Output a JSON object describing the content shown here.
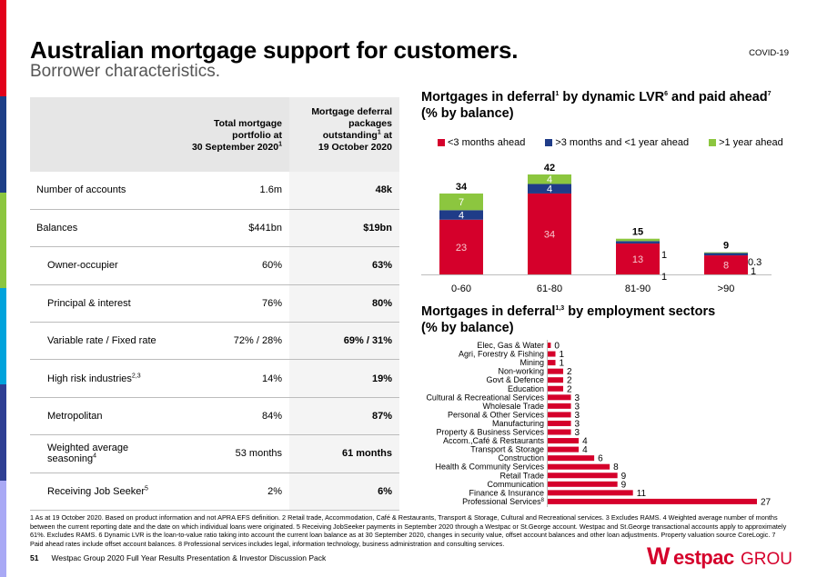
{
  "page": {
    "title": "Australian mortgage support for customers.",
    "subtitle": "Borrower characteristics.",
    "tag": "COVID-19"
  },
  "table": {
    "header": {
      "col1": [
        "Total mortgage",
        "portfolio at",
        "30 September 2020"
      ],
      "col1_sup": "1",
      "col2": [
        "Mortgage deferral",
        "packages",
        "outstanding",
        "19 October 2020"
      ],
      "col2_sup": "1",
      "col2_at": " at"
    },
    "rows": [
      {
        "label": "Number of accounts",
        "sup": "",
        "indent": false,
        "v1": "1.6m",
        "v2": "48k"
      },
      {
        "label": "Balances",
        "sup": "",
        "indent": false,
        "v1": "$441bn",
        "v2": "$19bn"
      },
      {
        "label": "Owner-occupier",
        "sup": "",
        "indent": true,
        "v1": "60%",
        "v2": "63%"
      },
      {
        "label": "Principal & interest",
        "sup": "",
        "indent": true,
        "v1": "76%",
        "v2": "80%"
      },
      {
        "label": "Variable rate / Fixed rate",
        "sup": "",
        "indent": true,
        "v1": "72% / 28%",
        "v2": "69% / 31%"
      },
      {
        "label": "High risk industries",
        "sup": "2,3",
        "indent": true,
        "v1": "14%",
        "v2": "19%"
      },
      {
        "label": "Metropolitan",
        "sup": "",
        "indent": true,
        "v1": "84%",
        "v2": "87%"
      },
      {
        "label": "Weighted average seasoning",
        "sup": "4",
        "indent": true,
        "v1": "53 months",
        "v2": "61 months"
      },
      {
        "label": "Receiving Job Seeker",
        "sup": "5",
        "indent": true,
        "v1": "2%",
        "v2": "6%"
      }
    ]
  },
  "chart1_title": {
    "a": "Mortgages in deferral",
    "sup_a": "1",
    "b": " by dynamic LVR",
    "sup_b": "6",
    "c": " and paid ahead",
    "sup_c": "7",
    "line2": "(% by balance)"
  },
  "chart2_title": {
    "a": "Mortgages in deferral",
    "sup_a": "1,3",
    "b": " by employment sectors",
    "line2": "(% by balance)"
  },
  "chart_data": [
    {
      "type": "bar",
      "stacked": true,
      "categories": [
        "0-60",
        "61-80",
        "81-90",
        ">90"
      ],
      "series": [
        {
          "name": "<3 months ahead",
          "color": "#d5002b",
          "values": [
            23,
            34,
            13,
            8
          ],
          "labels": [
            "23",
            "34",
            "13",
            "8"
          ]
        },
        {
          "name": ">3 months and <1 year ahead",
          "color": "#1f3c88",
          "values": [
            4,
            4,
            1,
            1
          ],
          "labels": [
            "4",
            "4",
            "1",
            "1"
          ]
        },
        {
          "name": ">1 year ahead",
          "color": "#8cc63f",
          "values": [
            7,
            4,
            1,
            0.3
          ],
          "labels": [
            "7",
            "4",
            "1",
            "0.3"
          ]
        }
      ],
      "totals": [
        "34",
        "42",
        "15",
        "9"
      ],
      "ylim": [
        0,
        42
      ]
    },
    {
      "type": "bar",
      "orientation": "horizontal",
      "color": "#d5002b",
      "categories": [
        "Elec, Gas & Water",
        "Agri, Forestry & Fishing",
        "Mining",
        "Non-working",
        "Govt & Defence",
        "Education",
        "Cultural & Recreational Services",
        "Wholesale Trade",
        "Personal & Other Services",
        "Manufacturing",
        "Property & Business Services",
        "Accom.,Café & Restaurants",
        "Transport & Storage",
        "Construction",
        "Health & Community Services",
        "Retail Trade",
        "Communication",
        "Finance & Insurance",
        "Professional Services"
      ],
      "category_sups": [
        "",
        "",
        "",
        "",
        "",
        "",
        "",
        "",
        "",
        "",
        "",
        "",
        "",
        "",
        "",
        "",
        "",
        "",
        "8"
      ],
      "values": [
        0.4,
        1,
        1,
        2,
        2,
        2,
        3,
        3,
        3,
        3,
        3,
        4,
        4,
        6,
        8,
        9,
        9,
        11,
        27
      ],
      "labels": [
        "0",
        "1",
        "1",
        "2",
        "2",
        "2",
        "3",
        "3",
        "3",
        "3",
        "3",
        "4",
        "4",
        "6",
        "8",
        "9",
        "9",
        "11",
        "27"
      ]
    }
  ],
  "footnote": "1 As at 19 October 2020. Based on product information and not APRA EFS definition.  2 Retail trade, Accommodation, Café & Restaurants, Transport & Storage, Cultural and Recreational services. 3 Excludes RAMS. 4 Weighted average number of months between the current reporting date and the date on which individual loans were originated.  5 Receiving JobSeeker payments in September 2020 through a Westpac or St.George account. Westpac and St.George transactional accounts apply to approximately 61%.  Excludes RAMS.  6 Dynamic LVR is the loan-to-value ratio taking into account the current loan balance as at 30 September 2020, changes in security value, offset account balances and other loan adjustments.  Property valuation source CoreLogic. 7 Paid ahead rates include offset account balances. 8 Professional services includes legal, information technology, business administration and consulting services.",
  "footer": {
    "page_number": "51",
    "text": "Westpac Group 2020 Full Year Results Presentation & Investor Discussion Pack"
  },
  "logo": {
    "mark": "W",
    "name": "estpac",
    "group": "GROUP",
    "color": "#d5002b"
  },
  "sidebar_colors": [
    "#e2001a",
    "#1d3f87",
    "#8cc63f",
    "#00a3dc",
    "#2f3f93",
    "#a9a9f5"
  ]
}
